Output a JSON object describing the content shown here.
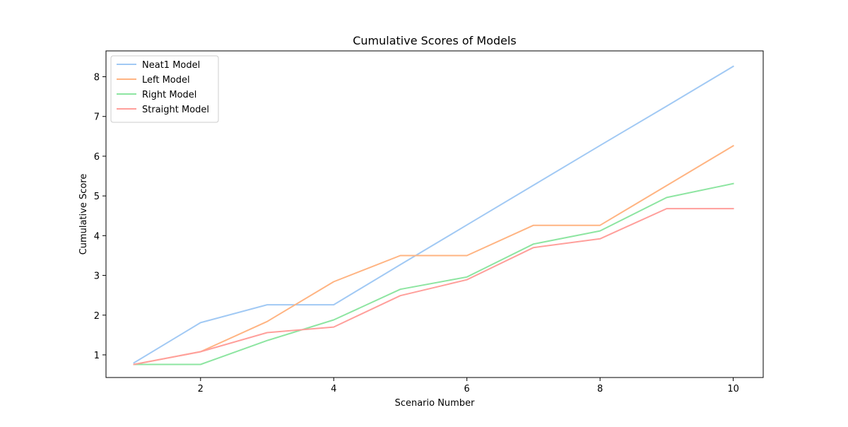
{
  "chart_data": {
    "type": "line",
    "title": "Cumulative Scores of Models",
    "xlabel": "Scenario Number",
    "ylabel": "Cumulative Score",
    "x": [
      1,
      2,
      3,
      4,
      5,
      6,
      7,
      8,
      9,
      10
    ],
    "xlim": [
      0.58,
      10.45
    ],
    "ylim": [
      0.43,
      8.65
    ],
    "xticks": [
      2,
      4,
      6,
      8,
      10
    ],
    "xtick_labels": [
      "2",
      "4",
      "6",
      "8",
      "10"
    ],
    "yticks": [
      1,
      2,
      3,
      4,
      5,
      6,
      7,
      8
    ],
    "ytick_labels": [
      "1",
      "2",
      "3",
      "4",
      "5",
      "6",
      "7",
      "8"
    ],
    "grid": false,
    "legend_position": "top-left",
    "series": [
      {
        "name": "Neat1 Model",
        "color": "#a1c9f4",
        "values": [
          0.8,
          1.81,
          2.26,
          2.26,
          3.27,
          4.27,
          5.27,
          6.27,
          7.26,
          8.26
        ]
      },
      {
        "name": "Left Model",
        "color": "#ffb482",
        "values": [
          0.76,
          1.08,
          1.84,
          2.84,
          3.5,
          3.5,
          4.26,
          4.26,
          5.26,
          6.26
        ]
      },
      {
        "name": "Right Model",
        "color": "#8de5a1",
        "values": [
          0.76,
          0.76,
          1.36,
          1.88,
          2.65,
          2.96,
          3.79,
          4.12,
          4.96,
          5.31
        ]
      },
      {
        "name": "Straight Model",
        "color": "#ff9f9b",
        "values": [
          0.76,
          1.08,
          1.56,
          1.7,
          2.49,
          2.89,
          3.7,
          3.92,
          4.68,
          4.68
        ]
      }
    ]
  }
}
